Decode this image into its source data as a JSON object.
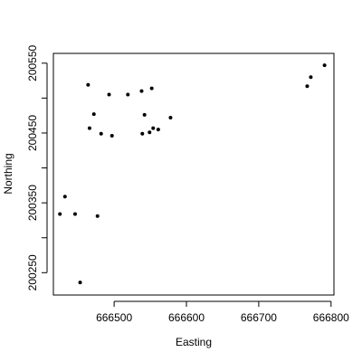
{
  "chart_data": {
    "type": "scatter",
    "title": "",
    "xlabel": "Easting",
    "ylabel": "Northing",
    "xlim": [
      666416,
      666804
    ],
    "ylim": [
      200218,
      200564
    ],
    "x_ticks": [
      666500,
      666600,
      666700,
      666800
    ],
    "y_ticks_minor": [
      200250,
      200300,
      200350,
      200400,
      200450,
      200500,
      200550
    ],
    "y_tick_labels": [
      "200250",
      "200350",
      "200450",
      "200550"
    ],
    "y_tick_label_values": [
      200250,
      200350,
      200450,
      200550
    ],
    "grid": false,
    "legend": "none",
    "point_color": "#000000",
    "points": [
      {
        "x": 666453,
        "y": 200236
      },
      {
        "x": 666425,
        "y": 200334
      },
      {
        "x": 666432,
        "y": 200359
      },
      {
        "x": 666446,
        "y": 200334
      },
      {
        "x": 666477,
        "y": 200331
      },
      {
        "x": 666464,
        "y": 200519
      },
      {
        "x": 666466,
        "y": 200457
      },
      {
        "x": 666472,
        "y": 200477
      },
      {
        "x": 666482,
        "y": 200449
      },
      {
        "x": 666493,
        "y": 200505
      },
      {
        "x": 666497,
        "y": 200446
      },
      {
        "x": 666519,
        "y": 200505
      },
      {
        "x": 666538,
        "y": 200510
      },
      {
        "x": 666539,
        "y": 200449
      },
      {
        "x": 666542,
        "y": 200476
      },
      {
        "x": 666549,
        "y": 200451
      },
      {
        "x": 666552,
        "y": 200514
      },
      {
        "x": 666554,
        "y": 200457
      },
      {
        "x": 666561,
        "y": 200455
      },
      {
        "x": 666578,
        "y": 200472
      },
      {
        "x": 666767,
        "y": 200517
      },
      {
        "x": 666772,
        "y": 200530
      },
      {
        "x": 666791,
        "y": 200547
      }
    ]
  }
}
